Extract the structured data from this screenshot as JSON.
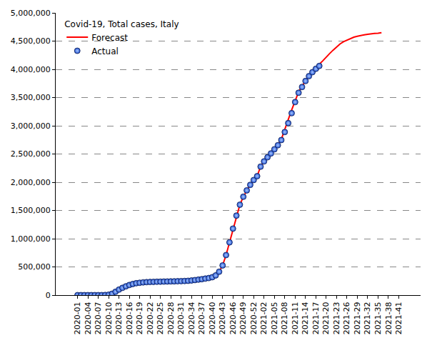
{
  "chart_data": {
    "type": "line",
    "title": "Covid-19, Total cases, Italy",
    "categories": [
      "2020-01",
      null,
      null,
      "2020-04",
      null,
      null,
      "2020-07",
      null,
      null,
      "2020-10",
      null,
      null,
      "2020-13",
      null,
      null,
      "2020-16",
      null,
      null,
      "2020-19",
      null,
      null,
      "2020-22",
      null,
      null,
      "2020-25",
      null,
      null,
      "2020-28",
      null,
      null,
      "2020-31",
      null,
      null,
      "2020-34",
      null,
      null,
      "2020-37",
      null,
      null,
      "2020-40",
      null,
      null,
      "2020-43",
      null,
      null,
      "2020-46",
      null,
      null,
      "2020-49",
      null,
      null,
      "2020-52",
      null,
      null,
      "2021-02",
      null,
      null,
      "2021-05",
      null,
      null,
      "2021-08",
      null,
      null,
      "2021-11",
      null,
      null,
      "2021-14",
      null,
      null,
      "2021-17",
      null,
      null,
      "2021-20",
      null,
      null,
      "2021-23",
      null,
      null,
      "2021-26",
      null,
      null,
      "2021-29",
      null,
      null,
      "2021-32",
      null,
      null,
      "2021-35",
      null,
      null,
      "2021-38",
      null,
      null,
      "2021-41"
    ],
    "series": [
      {
        "name": "Forecast",
        "type": "line",
        "color": "#ff0000",
        "line_style": "solid",
        "values": [
          0,
          0,
          0,
          0,
          0,
          0,
          0,
          152,
          1694,
          7375,
          24747,
          59138,
          97689,
          128948,
          156363,
          178972,
          197675,
          210717,
          219070,
          225886,
          230158,
          233019,
          234998,
          236989,
          238499,
          240436,
          241956,
          243230,
          244752,
          246488,
          248229,
          250566,
          253915,
          259345,
          266853,
          274644,
          283180,
          293025,
          302537,
          317409,
          349494,
          414241,
          525782,
          709335,
          935104,
          1178529,
          1408868,
          1601554,
          1742557,
          1855737,
          1953185,
          2038759,
          2107166,
          2276491,
          2368733,
          2441854,
          2510315,
          2583790,
          2655319,
          2760000,
          2950000,
          3110000,
          3280000,
          3450000,
          3600000,
          3700000,
          3800000,
          3885000,
          3955000,
          4030000,
          4090000,
          4150000,
          4220000,
          4280000,
          4340000,
          4400000,
          4450000,
          4490000,
          4520000,
          4550000,
          4570000,
          4585000,
          4600000,
          4610000,
          4620000,
          4630000,
          4635000,
          4640000,
          4650000,
          null,
          null,
          null,
          null,
          null
        ]
      },
      {
        "name": "Actual",
        "type": "scatter",
        "color": "#1f4fd0",
        "marker": "circle",
        "values": [
          0,
          0,
          0,
          0,
          0,
          0,
          0,
          152,
          1694,
          7375,
          24747,
          59138,
          97689,
          128948,
          156363,
          178972,
          197675,
          210717,
          219070,
          225886,
          230158,
          233019,
          234998,
          236989,
          238499,
          240436,
          241956,
          243230,
          244752,
          246488,
          248229,
          250566,
          253915,
          259345,
          266853,
          274644,
          283180,
          293025,
          302537,
          317409,
          349494,
          414241,
          525782,
          709335,
          935104,
          1178529,
          1408868,
          1601554,
          1742557,
          1855737,
          1953185,
          2038759,
          2107166,
          2276491,
          2368733,
          2441854,
          2510315,
          2583790,
          2655319,
          2747364,
          2888923,
          3046762,
          3223142,
          3419616,
          3584899,
          3686707,
          3793033,
          3878994,
          3949517,
          4009208,
          4059821,
          null,
          null,
          null,
          null,
          null,
          null,
          null,
          null,
          null,
          null,
          null,
          null,
          null,
          null,
          null,
          null,
          null,
          null,
          null,
          null,
          null,
          null,
          null
        ]
      }
    ],
    "ylim": [
      0,
      5000000
    ],
    "yticks": [
      0,
      {
        "value": 500000,
        "label": "500,000"
      },
      {
        "value": 1000000,
        "label": "1,000,000"
      },
      {
        "value": 1500000,
        "label": "1,500,000"
      },
      {
        "value": 2000000,
        "label": "2,000,000"
      },
      {
        "value": 2500000,
        "label": "2,500,000"
      },
      {
        "value": 3000000,
        "label": "3,000,000"
      },
      {
        "value": 3500000,
        "label": "3,500,000"
      },
      {
        "value": 4000000,
        "label": "4,000,000"
      },
      {
        "value": 4500000,
        "label": "4,500,000"
      },
      {
        "value": 5000000,
        "label": "5,000,000"
      }
    ],
    "grid": true,
    "legend": "top-left"
  }
}
